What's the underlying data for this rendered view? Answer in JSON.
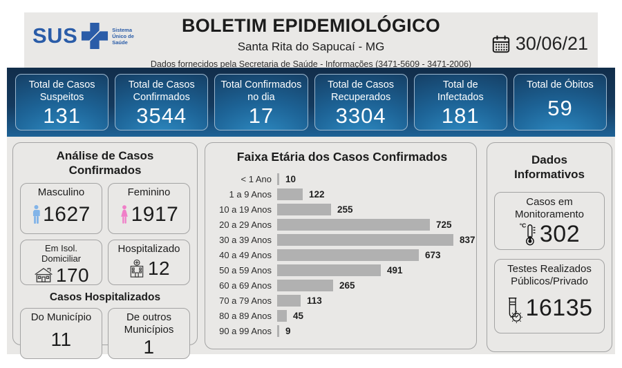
{
  "colors": {
    "brand_blue": "#2a5ca8",
    "navy_bar": "#143a5e",
    "card_blue_bright": "#2f8ec6",
    "card_blue_mid": "#1d6396",
    "card_border": "#9db8cf",
    "panel_bg": "#e9e8e6",
    "panel_border": "#a3a3a3",
    "bar_gray": "#b1b1b1",
    "male_blue": "#82b4e8",
    "female_pink": "#f07fc8",
    "text_dark": "#1c1c1c"
  },
  "header": {
    "logo_text": "SUS",
    "logo_tagline": "Sistema Único de Saúde",
    "title": "BOLETIM EPIDEMIOLÓGICO",
    "subtitle": "Santa Rita do Sapucaí - MG",
    "info_line": "Dados fornecidos pela Secretaria de Saúde - Informações (3471-5609 - 3471-2006)",
    "date": "30/06/21"
  },
  "summary_cards": [
    {
      "label": "Total de Casos\nSuspeitos",
      "value": "131"
    },
    {
      "label": "Total de Casos\nConfirmados",
      "value": "3544"
    },
    {
      "label": "Total Confirmados\nno dia",
      "value": "17"
    },
    {
      "label": "Total de Casos\nRecuperados",
      "value": "3304"
    },
    {
      "label": "Total de\nInfectados",
      "value": "181"
    },
    {
      "label": "Total de Óbitos",
      "value": "59"
    }
  ],
  "analysis_panel": {
    "title": "Análise de Casos Confirmados",
    "cards": {
      "male": {
        "label": "Masculino",
        "value": "1627"
      },
      "female": {
        "label": "Feminino",
        "value": "1917"
      },
      "isolation": {
        "label": "Em Isol.\nDomiciliar",
        "value": "170"
      },
      "hospitalized": {
        "label": "Hospitalizado",
        "value": "12"
      }
    },
    "hospital_section": {
      "title": "Casos Hospitalizados",
      "municipality": {
        "label": "Do Município",
        "value": "11"
      },
      "other_municipalities": {
        "label": "De outros\nMunicípios",
        "value": "1"
      }
    }
  },
  "chart_data": {
    "type": "bar",
    "orientation": "horizontal",
    "title": "Faixa Etária dos Casos Confirmados",
    "categories": [
      "< 1 Ano",
      "1 a 9 Anos",
      "10 a 19 Anos",
      "20 a 29 Anos",
      "30 a 39 Anos",
      "40 a 49 Anos",
      "50 a 59 Anos",
      "60 a 69 Anos",
      "70 a 79 Anos",
      "80 a 89 Anos",
      "90 a 99 Anos"
    ],
    "values": [
      10,
      122,
      255,
      725,
      837,
      673,
      491,
      265,
      113,
      45,
      9
    ],
    "bar_color": "#b1b1b1",
    "value_labels_shown": true,
    "xlim": [
      0,
      880
    ],
    "legend": "none",
    "grid": false
  },
  "info_panel": {
    "title": "Dados\nInformativos",
    "monitoring": {
      "label": "Casos em\nMonitoramento",
      "value": "302"
    },
    "tests": {
      "label": "Testes Realizados\nPúblicos/Privado",
      "value": "16135"
    }
  }
}
